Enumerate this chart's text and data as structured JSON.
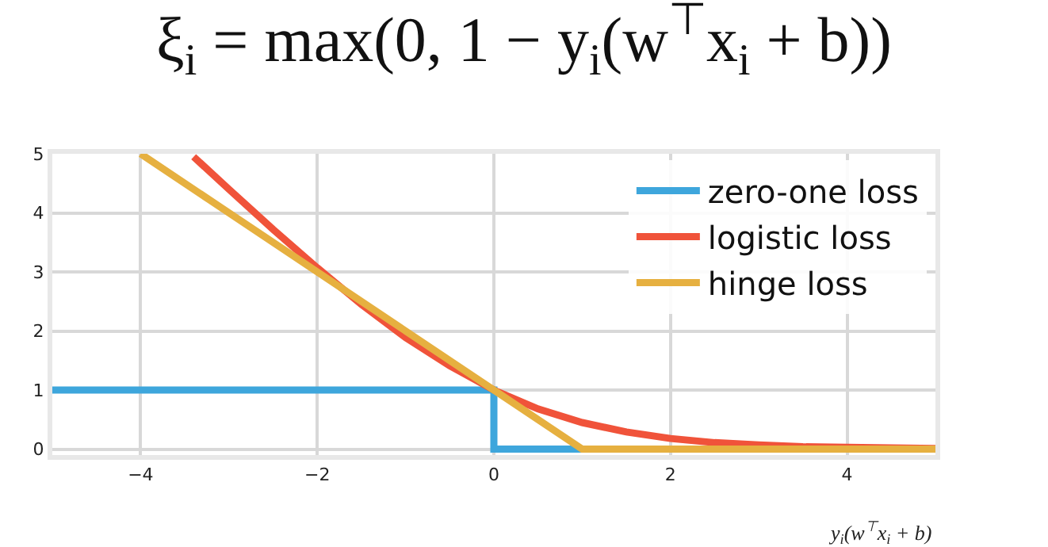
{
  "chart_data": {
    "type": "line",
    "title": "ξ$_{i}$ = max(0, 1 − y$_{i}$(w$^{⊤}$x$_{i}$ + b))",
    "xlabel": "y$_{i}$(w$^{⊤}$x$_{i}$ + b)",
    "xlim": [
      -5,
      5
    ],
    "ylim": [
      -0.1,
      5
    ],
    "xticks": [
      {
        "value": -4,
        "label": "−4"
      },
      {
        "value": -2,
        "label": "−2"
      },
      0,
      2,
      4
    ],
    "yticks": [
      0,
      1,
      2,
      3,
      4,
      5
    ],
    "grid": true,
    "legend": "top right",
    "marker": "none",
    "line_style": "solid",
    "series": [
      {
        "name": "zero-one loss",
        "color": "#3ea6dc",
        "x": [
          -5,
          0,
          0,
          5
        ],
        "values": [
          1,
          1,
          0,
          0
        ]
      },
      {
        "name": "logistic loss",
        "color": "#f0533a",
        "x": [
          -3.4,
          -3,
          -2.5,
          -2,
          -1.5,
          -1,
          -0.5,
          0,
          0.5,
          1,
          1.5,
          2,
          2.5,
          3,
          3.5,
          4,
          4.5,
          5
        ],
        "values": [
          4.95,
          4.4,
          3.72,
          3.07,
          2.45,
          1.89,
          1.41,
          1,
          0.68,
          0.45,
          0.29,
          0.18,
          0.11,
          0.07,
          0.04,
          0.03,
          0.02,
          0.01
        ]
      },
      {
        "name": "hinge loss",
        "color": "#e6b040",
        "x": [
          -4,
          1,
          5
        ],
        "values": [
          5,
          0,
          0
        ]
      }
    ]
  }
}
